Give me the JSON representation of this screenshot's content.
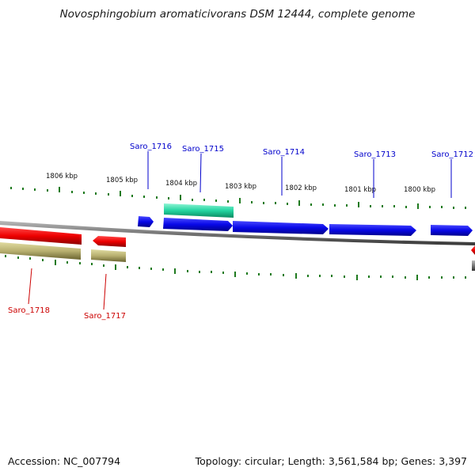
{
  "title": "Novosphingobium aromaticivorans DSM 12444, complete genome",
  "accession": "Accession: NC_007794",
  "summary": "Topology: circular; Length: 3,561,584 bp; Genes: 3,397",
  "colors": {
    "forward_cds": "#0a0af0",
    "reverse_cds": "#ee0000",
    "reverse_feature": "#b8b070",
    "forward_feature": "#22d4a0",
    "backbone": "#777777",
    "ticks": "#1f7a1f",
    "label_forward": "#0000cc",
    "label_reverse": "#cc0000"
  },
  "scale": {
    "labels": [
      "1806 kbp",
      "1805 kbp",
      "1804 kbp",
      "1803 kbp",
      "1802 kbp",
      "1801 kbp",
      "1800 kbp"
    ]
  },
  "genes_forward": [
    {
      "name": "Saro_1716"
    },
    {
      "name": "Saro_1715"
    },
    {
      "name": "Saro_1714"
    },
    {
      "name": "Saro_1713"
    },
    {
      "name": "Saro_1712"
    }
  ],
  "genes_reverse": [
    {
      "name": "Saro_1718"
    },
    {
      "name": "Saro_1717"
    }
  ]
}
